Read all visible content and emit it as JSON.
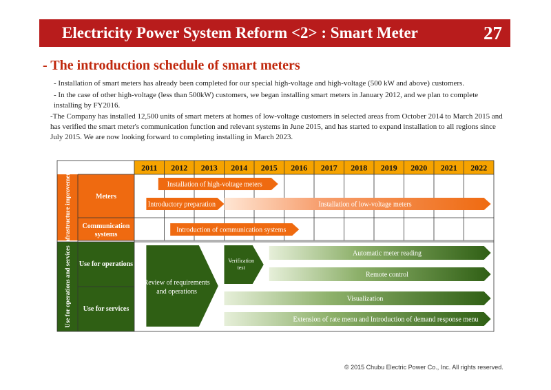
{
  "header": {
    "title": "Electricity Power System Reform <2> : Smart Meter",
    "page_number": "27",
    "bar_color": "#b81c1c"
  },
  "subtitle": "- The introduction schedule of smart meters",
  "bullets": [
    "- Installation of smart meters has already been completed for our special high-voltage and high-voltage (500 kW and above) customers.",
    "- In the case of other high-voltage (less than 500kW) customers, we began installing smart meters in January 2012, and we plan to complete installing by FY2016.",
    "-The Company has installed 12,500 units of smart meters at homes of low-voltage customers in selected areas from October 2014 to March 2015 and has verified the smart meter's communication function and relevant systems in June 2015, and has started to expand installation to all regions since July 2015.  We are now looking forward to completing installing in March 2023."
  ],
  "schedule": {
    "years": [
      "2011",
      "2012",
      "2013",
      "2014",
      "2015",
      "2016",
      "2017",
      "2018",
      "2019",
      "2020",
      "2021",
      "2022"
    ],
    "groups": {
      "infrastructure": "Infrastructure improvement",
      "operations": "Use for operations and services"
    },
    "rows": {
      "meters": "Meters",
      "communication": "Communication systems",
      "operations": "Use for operations",
      "services": "Use for services"
    },
    "bars": {
      "high_voltage": {
        "label": "Installation of high-voltage meters",
        "start": 2011.8,
        "end": 2015.8
      },
      "intro_prep": {
        "label": "Introductory preparation",
        "start": 2011.4,
        "end": 2014.0
      },
      "low_voltage": {
        "label": "Installation of low-voltage meters",
        "start": 2014.0,
        "end": 2022.9
      },
      "comm_systems": {
        "label": "Introduction of communication  systems",
        "start": 2012.2,
        "end": 2016.5
      },
      "review": {
        "label": "Review of requirements and operations",
        "start": 2011.4,
        "end": 2013.8
      },
      "verification": {
        "label": "Verification test",
        "start": 2014.0,
        "end": 2015.5
      },
      "auto_reading": {
        "label": "Automatic meter reading",
        "start": 2015.5,
        "end": 2022.9
      },
      "remote_control": {
        "label": "Remote control",
        "start": 2015.5,
        "end": 2022.9
      },
      "visualization": {
        "label": "Visualization",
        "start": 2014.0,
        "end": 2022.9
      },
      "rate_menu": {
        "label": "Extension of rate menu and Introduction  of demand response menu",
        "start": 2014.0,
        "end": 2022.9
      }
    },
    "colors": {
      "year_header": "#f6a300",
      "infra_label": "#ef6a10",
      "ops_label": "#2f5f14",
      "orange": "#ef6a10",
      "green": "#2f5f14"
    }
  },
  "footer": {
    "copyright": "© 2015 Chubu Electric Power Co., Inc. All rights reserved."
  }
}
